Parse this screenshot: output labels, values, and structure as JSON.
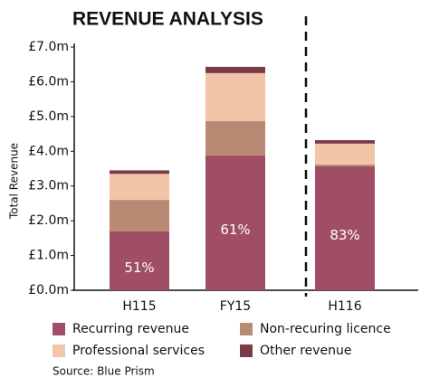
{
  "chart_data": {
    "type": "stacked_bar",
    "title": "REVENUE ANALYSIS",
    "y_label": "Total Revenue",
    "categories": [
      "H115",
      "FY15",
      "H116"
    ],
    "series": [
      {
        "name": "Recurring revenue",
        "color": "#a04e66",
        "values": [
          1.7,
          3.88,
          3.57
        ]
      },
      {
        "name": "Non-recuring licence",
        "color": "#b98a73",
        "values": [
          0.9,
          0.99,
          0.05
        ]
      },
      {
        "name": "Professional services",
        "color": "#f3c4a7",
        "values": [
          0.75,
          1.38,
          0.6
        ]
      },
      {
        "name": "Other revenue",
        "color": "#7a3a48",
        "values": [
          0.1,
          0.18,
          0.1
        ]
      }
    ],
    "annotations": [
      "51%",
      "61%",
      "83%"
    ],
    "ylim": [
      0,
      7
    ],
    "yticks": [
      {
        "value": 0,
        "label": "£0.0m"
      },
      {
        "value": 1,
        "label": "£1.0m"
      },
      {
        "value": 2,
        "label": "£2.0m"
      },
      {
        "value": 3,
        "label": "£3.0m"
      },
      {
        "value": 4,
        "label": "£4.0m"
      },
      {
        "value": 5,
        "label": "£5.0m"
      },
      {
        "value": 6,
        "label": "£6.0m"
      },
      {
        "value": 7,
        "label": "£7.0m"
      }
    ],
    "source": "Source: Blue Prism"
  }
}
